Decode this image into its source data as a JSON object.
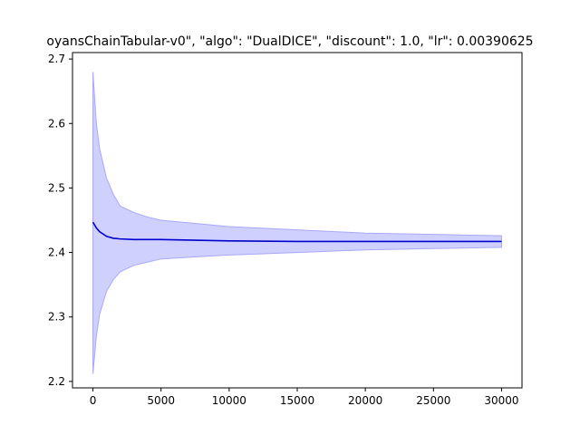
{
  "chart_data": {
    "type": "line",
    "title": "oyansChainTabular-v0\", \"algo\": \"DualDICE\", \"discount\": 1.0, \"lr\": 0.00390625",
    "xlabel": "",
    "ylabel": "",
    "xlim": [
      -1500,
      31500
    ],
    "ylim": [
      2.19,
      2.71
    ],
    "x_ticks": [
      0,
      5000,
      10000,
      15000,
      20000,
      25000,
      30000
    ],
    "x_tick_labels": [
      "0",
      "5000",
      "10000",
      "15000",
      "20000",
      "25000",
      "30000"
    ],
    "y_ticks": [
      2.2,
      2.3,
      2.4,
      2.5,
      2.6,
      2.7
    ],
    "y_tick_labels": [
      "2.2",
      "2.3",
      "2.4",
      "2.5",
      "2.6",
      "2.7"
    ],
    "grid": false,
    "legend": "none",
    "series": [
      {
        "color": "#0000cc",
        "x": [
          0,
          250,
          500,
          1000,
          1500,
          2000,
          3000,
          4000,
          5000,
          7500,
          10000,
          15000,
          20000,
          25000,
          30000
        ],
        "mean": [
          2.447,
          2.438,
          2.432,
          2.425,
          2.422,
          2.421,
          2.42,
          2.42,
          2.42,
          2.419,
          2.418,
          2.417,
          2.417,
          2.417,
          2.417
        ],
        "upper": [
          2.68,
          2.6,
          2.56,
          2.515,
          2.49,
          2.472,
          2.462,
          2.455,
          2.45,
          2.445,
          2.44,
          2.435,
          2.43,
          2.428,
          2.426
        ],
        "lower": [
          2.212,
          2.27,
          2.305,
          2.34,
          2.358,
          2.37,
          2.38,
          2.385,
          2.39,
          2.393,
          2.396,
          2.4,
          2.404,
          2.406,
          2.408
        ]
      }
    ],
    "colors": {
      "line": "#0000cc",
      "band_fill": "#d0d0ff",
      "band_edge": "#a8a8f8"
    }
  }
}
